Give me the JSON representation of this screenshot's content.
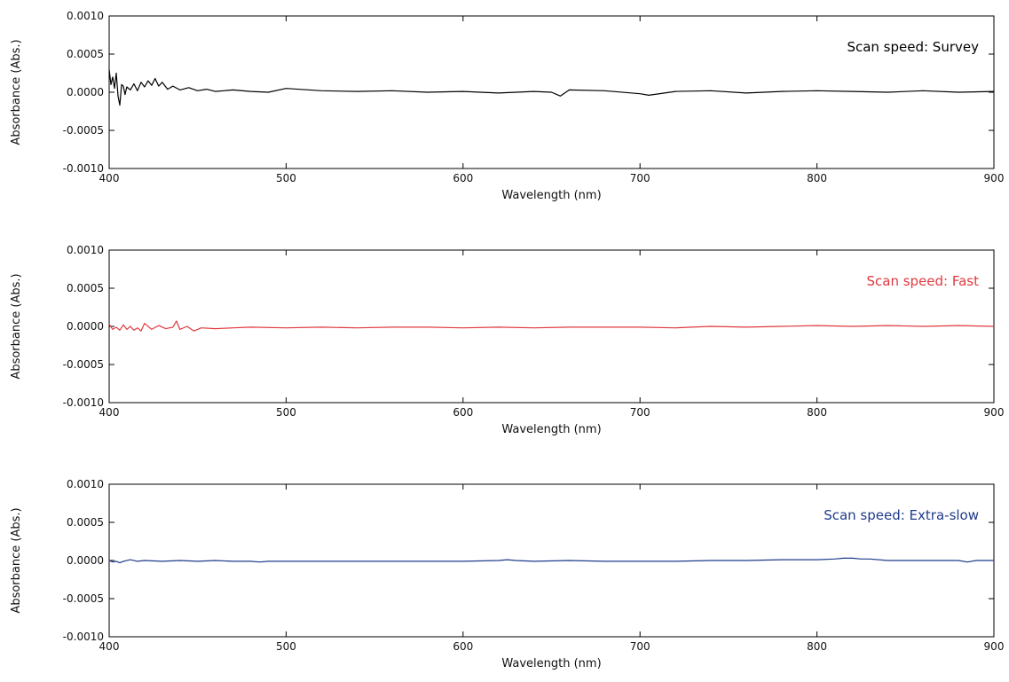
{
  "chart_data": [
    {
      "type": "line",
      "title": "Scan speed: Survey",
      "title_color": "#000000",
      "line_color": "#000000",
      "xlabel": "Wavelength (nm)",
      "ylabel": "Absorbance (Abs.)",
      "xlim": [
        400,
        900
      ],
      "ylim": [
        -0.001,
        0.001
      ],
      "xticks": [
        400,
        500,
        600,
        700,
        800,
        900
      ],
      "xtick_labels": [
        "400",
        "500",
        "600",
        "700",
        "800",
        "900"
      ],
      "yticks": [
        -0.001,
        -0.0005,
        0,
        0.0005,
        0.001
      ],
      "ytick_labels": [
        "-0.0010",
        "-0.0005",
        "0.0000",
        "0.0005",
        "0.0010"
      ],
      "grid": false,
      "series": [
        {
          "x": [
            400,
            401,
            402,
            403,
            404,
            405,
            406,
            407,
            408,
            409,
            410,
            412,
            414,
            416,
            418,
            420,
            422,
            424,
            426,
            428,
            430,
            433,
            436,
            440,
            445,
            450,
            455,
            460,
            470,
            480,
            490,
            500,
            520,
            540,
            560,
            580,
            600,
            620,
            640,
            650,
            655,
            660,
            680,
            700,
            705,
            720,
            740,
            760,
            780,
            800,
            820,
            840,
            860,
            880,
            900
          ],
          "y": [
            0.0003,
            0.0001,
            0.0002,
            5e-05,
            0.00025,
            -5e-05,
            -0.00017,
            0.0001,
            8e-05,
            -3e-05,
            7e-05,
            3e-05,
            0.00011,
            2e-05,
            0.00013,
            7e-05,
            0.00015,
            9e-05,
            0.00018,
            8e-05,
            0.00013,
            4e-05,
            8e-05,
            3e-05,
            6e-05,
            2e-05,
            4e-05,
            1e-05,
            3e-05,
            1e-05,
            0.0,
            5e-05,
            2e-05,
            1e-05,
            2e-05,
            0.0,
            1e-05,
            -1e-05,
            1e-05,
            0.0,
            -5e-05,
            3e-05,
            2e-05,
            -2e-05,
            -4e-05,
            1e-05,
            2e-05,
            -1e-05,
            1e-05,
            2e-05,
            1e-05,
            0.0,
            2e-05,
            0.0,
            1e-05
          ]
        }
      ]
    },
    {
      "type": "line",
      "title": "Scan speed: Fast",
      "title_color": "#e0393e",
      "line_color": "#e0393e",
      "xlabel": "Wavelength (nm)",
      "ylabel": "Absorbance (Abs.)",
      "xlim": [
        400,
        900
      ],
      "ylim": [
        -0.001,
        0.001
      ],
      "xticks": [
        400,
        500,
        600,
        700,
        800,
        900
      ],
      "xtick_labels": [
        "400",
        "500",
        "600",
        "700",
        "800",
        "900"
      ],
      "yticks": [
        -0.001,
        -0.0005,
        0,
        0.0005,
        0.001
      ],
      "ytick_labels": [
        "-0.0010",
        "-0.0005",
        "0.0000",
        "0.0005",
        "0.0010"
      ],
      "grid": false,
      "series": [
        {
          "x": [
            400,
            402,
            404,
            406,
            408,
            410,
            412,
            414,
            416,
            418,
            420,
            424,
            428,
            432,
            436,
            438,
            440,
            444,
            448,
            452,
            460,
            470,
            480,
            500,
            520,
            540,
            560,
            580,
            600,
            620,
            640,
            660,
            680,
            700,
            720,
            740,
            760,
            780,
            800,
            820,
            840,
            860,
            880,
            900
          ],
          "y": [
            3e-05,
            -4e-05,
            -1e-05,
            -5e-05,
            2e-05,
            -4e-05,
            0.0,
            -5e-05,
            -2e-05,
            -6e-05,
            4e-05,
            -4e-05,
            1e-05,
            -3e-05,
            -1e-05,
            7e-05,
            -4e-05,
            0.0,
            -6e-05,
            -2e-05,
            -3e-05,
            -2e-05,
            -1e-05,
            -2e-05,
            -1e-05,
            -2e-05,
            -1e-05,
            -1e-05,
            -2e-05,
            -1e-05,
            -2e-05,
            -1e-05,
            -1e-05,
            -1e-05,
            -2e-05,
            0.0,
            -1e-05,
            0.0,
            1e-05,
            0.0,
            1e-05,
            0.0,
            1e-05,
            0.0
          ]
        }
      ]
    },
    {
      "type": "line",
      "title": "Scan speed: Extra-slow",
      "title_color": "#1f3a8a",
      "line_color": "#1f3a8a",
      "xlabel": "Wavelength (nm)",
      "ylabel": "Absorbance (Abs.)",
      "xlim": [
        400,
        900
      ],
      "ylim": [
        -0.001,
        0.001
      ],
      "xticks": [
        400,
        500,
        600,
        700,
        800,
        900
      ],
      "xtick_labels": [
        "400",
        "500",
        "600",
        "700",
        "800",
        "900"
      ],
      "yticks": [
        -0.001,
        -0.0005,
        0,
        0.0005,
        0.001
      ],
      "ytick_labels": [
        "-0.0010",
        "-0.0005",
        "0.0000",
        "0.0005",
        "0.0010"
      ],
      "grid": false,
      "series": [
        {
          "x": [
            400,
            402,
            404,
            406,
            408,
            412,
            416,
            420,
            430,
            440,
            450,
            460,
            470,
            480,
            485,
            490,
            500,
            520,
            540,
            560,
            580,
            600,
            620,
            625,
            630,
            640,
            660,
            680,
            700,
            720,
            740,
            760,
            780,
            800,
            810,
            815,
            820,
            825,
            830,
            840,
            860,
            880,
            885,
            890,
            900
          ],
          "y": [
            0.0,
            -2e-05,
            -1e-05,
            -3e-05,
            -1e-05,
            1e-05,
            -1e-05,
            0.0,
            -1e-05,
            0.0,
            -1e-05,
            0.0,
            -1e-05,
            -1e-05,
            -2e-05,
            -1e-05,
            -1e-05,
            -1e-05,
            -1e-05,
            -1e-05,
            -1e-05,
            -1e-05,
            0.0,
            1e-05,
            0.0,
            -1e-05,
            0.0,
            -1e-05,
            -1e-05,
            -1e-05,
            0.0,
            0.0,
            1e-05,
            1e-05,
            2e-05,
            3e-05,
            3e-05,
            2e-05,
            2e-05,
            0.0,
            0.0,
            0.0,
            -2e-05,
            0.0,
            0.0
          ]
        }
      ]
    }
  ]
}
